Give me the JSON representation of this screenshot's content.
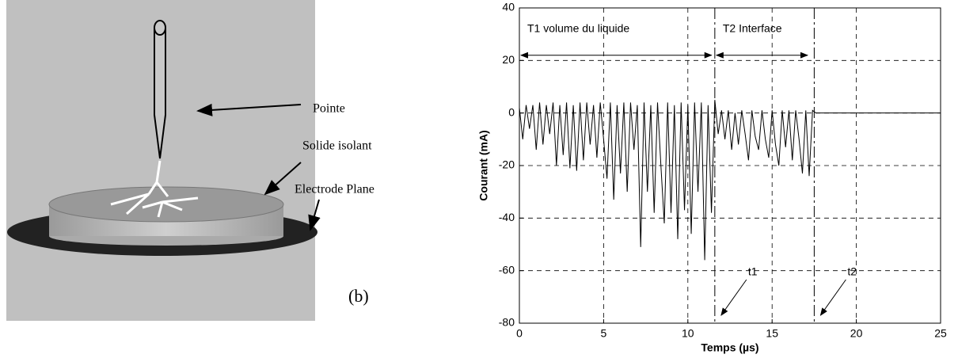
{
  "figure": {
    "pointe": "Pointe",
    "solide": "Solide isolant",
    "electrode": "Electrode Plane",
    "panel": "(b)"
  },
  "chart_data": {
    "type": "line",
    "xlabel": "Temps (µs)",
    "ylabel": "Courant (mA)",
    "xlim": [
      0,
      25
    ],
    "ylim": [
      -80,
      40
    ],
    "xticks": [
      0,
      5,
      10,
      15,
      20,
      25
    ],
    "yticks": [
      -80,
      -60,
      -40,
      -20,
      0,
      20,
      40
    ],
    "grid": true,
    "intervals": [
      {
        "label": "T1 volume du liquide",
        "start": 0,
        "end": 11.5,
        "y": 22
      },
      {
        "label": "T2 Interface",
        "start": 11.6,
        "end": 17.2,
        "y": 22
      }
    ],
    "event_lines": [
      {
        "label": "t1",
        "x": 11.6
      },
      {
        "label": "t2",
        "x": 17.5
      }
    ],
    "series": [
      {
        "color": "#000000",
        "x": [
          0,
          0.2,
          0.4,
          0.6,
          0.8,
          1,
          1.2,
          1.4,
          1.6,
          1.8,
          2,
          2.2,
          2.4,
          2.6,
          2.8,
          3,
          3.2,
          3.4,
          3.6,
          3.8,
          4,
          4.2,
          4.4,
          4.6,
          4.8,
          5,
          5.2,
          5.4,
          5.6,
          5.8,
          6,
          6.2,
          6.4,
          6.6,
          6.8,
          7,
          7.2,
          7.4,
          7.6,
          7.8,
          8,
          8.2,
          8.4,
          8.6,
          8.8,
          9,
          9.2,
          9.4,
          9.6,
          9.8,
          10,
          10.2,
          10.4,
          10.6,
          10.8,
          11,
          11.2,
          11.4,
          11.6,
          11.8,
          12,
          12.2,
          12.4,
          12.6,
          12.8,
          13,
          13.2,
          13.4,
          13.6,
          13.8,
          14,
          14.2,
          14.4,
          14.6,
          14.8,
          15,
          15.2,
          15.4,
          15.6,
          15.8,
          16,
          16.2,
          16.4,
          16.6,
          16.8,
          17,
          17.2,
          17.4,
          17.6,
          25
        ],
        "values": [
          2,
          -10,
          3,
          -6,
          3,
          -14,
          4,
          -12,
          3,
          -8,
          4,
          -20,
          3,
          -16,
          4,
          -21,
          3,
          -22,
          4,
          -18,
          4,
          -12,
          3,
          -17,
          4,
          -10,
          -25,
          4,
          -33,
          3,
          -23,
          4,
          -30,
          4,
          -14,
          3,
          -51,
          4,
          -30,
          3,
          -38,
          4,
          -20,
          -42,
          4,
          -38,
          3,
          -48,
          4,
          -37,
          3,
          -46,
          4,
          -30,
          4,
          -56,
          3,
          -38,
          5,
          -8,
          1,
          -10,
          1,
          -14,
          0,
          -12,
          1,
          -8,
          -18,
          1,
          -9,
          -14,
          1,
          -10,
          -17,
          1,
          -12,
          -20,
          1,
          -13,
          1,
          -18,
          1,
          -10,
          -23,
          1,
          -24,
          1,
          0,
          0
        ]
      }
    ]
  }
}
